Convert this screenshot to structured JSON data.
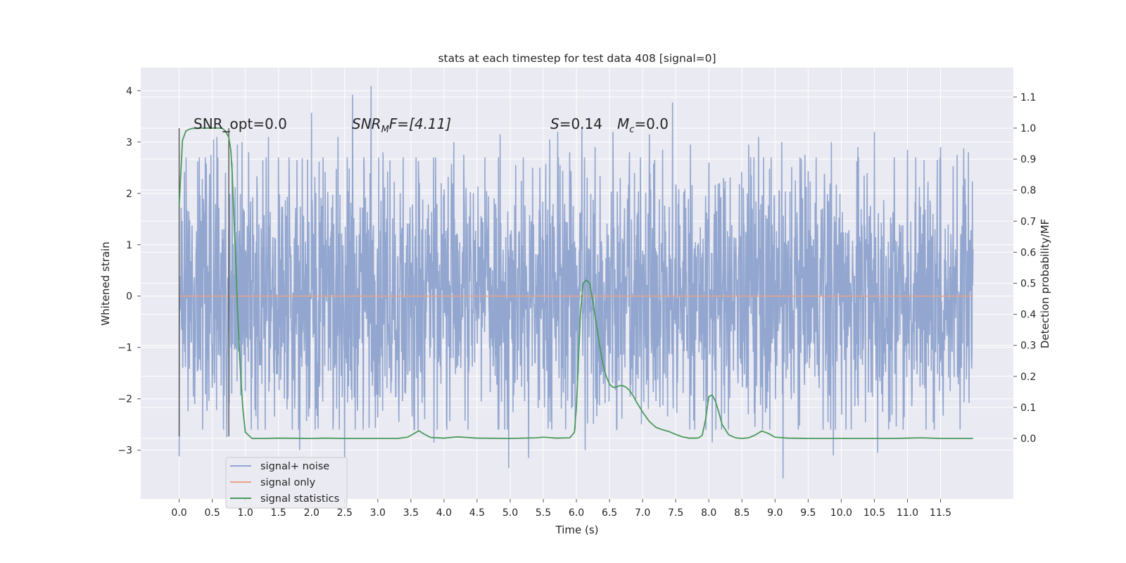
{
  "chart_data": {
    "type": "line",
    "title": "stats at each timestep for test data 408 [signal=0]",
    "xlabel": "Time (s)",
    "ylabel": "Whitened strain",
    "ylabel_right": "Detection probability/MF",
    "xlim": [
      -0.58,
      12.6
    ],
    "ylim": [
      -3.95,
      4.45
    ],
    "ylim_right": [
      -0.195,
      1.195
    ],
    "x_ticks": [
      0.0,
      0.5,
      1.0,
      1.5,
      2.0,
      2.5,
      3.0,
      3.5,
      4.0,
      4.5,
      5.0,
      5.5,
      6.0,
      6.5,
      7.0,
      7.5,
      8.0,
      8.5,
      9.0,
      9.5,
      10.0,
      10.5,
      11.0,
      11.5
    ],
    "x_tick_labels": [
      "0.0",
      "0.5",
      "1.0",
      "1.5",
      "2.0",
      "2.5",
      "3.0",
      "3.5",
      "4.0",
      "4.5",
      "5.0",
      "5.5",
      "6.0",
      "6.5",
      "7.0",
      "7.5",
      "8.0",
      "8.5",
      "9.0",
      "9.5",
      "10.0",
      "10.5",
      "11.0",
      "11.5"
    ],
    "y_ticks": [
      -3,
      -2,
      -1,
      0,
      1,
      2,
      3,
      4
    ],
    "y_tick_labels": [
      "−3",
      "−2",
      "−1",
      "0",
      "1",
      "2",
      "3",
      "4"
    ],
    "y_ticks_right": [
      0.0,
      0.1,
      0.2,
      0.3,
      0.4,
      0.5,
      0.6,
      0.7,
      0.8,
      0.9,
      1.0,
      1.1
    ],
    "y_tick_labels_right": [
      "0.0",
      "0.1",
      "0.2",
      "0.3",
      "0.4",
      "0.5",
      "0.6",
      "0.7",
      "0.8",
      "0.9",
      "1.0",
      "1.1"
    ],
    "grid": true,
    "legend_position": "lower-left",
    "annotations": {
      "snr_opt": "SNR_opt=0.0",
      "snr_mf_main": "SNR",
      "snr_mf_sub": "M",
      "snr_mf_rest": "F=[4.11]",
      "s_symbol": "S",
      "s_value": "=0.14",
      "mc_symbol": "M",
      "mc_sub": "c",
      "mc_value": "=0.0"
    },
    "markers": [
      {
        "x": 0.0,
        "y_range": [
          -2.73,
          3.27
        ]
      },
      {
        "x": 0.75,
        "y_range": [
          -2.73,
          3.27
        ]
      }
    ],
    "series": [
      {
        "name": "signal+ noise",
        "color": "#92a6cf",
        "axis": "left",
        "x_range": [
          0.0,
          11.99
        ],
        "samples": 2400,
        "spread": 1.52,
        "extremes": [
          {
            "x": 0.0,
            "y": -3.12
          },
          {
            "x": 0.08,
            "y": 2.42
          },
          {
            "x": 0.28,
            "y": 2.62
          },
          {
            "x": 0.48,
            "y": 2.75
          },
          {
            "x": 0.52,
            "y": 3.05
          },
          {
            "x": 0.57,
            "y": 3.1
          },
          {
            "x": 0.7,
            "y": 2.4
          },
          {
            "x": 0.72,
            "y": -2.75
          },
          {
            "x": 0.8,
            "y": 2.6
          },
          {
            "x": 0.88,
            "y": 2.95
          },
          {
            "x": 0.95,
            "y": 3.0
          },
          {
            "x": 1.05,
            "y": 2.8
          },
          {
            "x": 1.3,
            "y": -2.6
          },
          {
            "x": 1.35,
            "y": 3.1
          },
          {
            "x": 1.5,
            "y": 2.7
          },
          {
            "x": 1.78,
            "y": 2.65
          },
          {
            "x": 1.82,
            "y": -3.0
          },
          {
            "x": 2.0,
            "y": 3.57
          },
          {
            "x": 2.4,
            "y": 3.1
          },
          {
            "x": 2.5,
            "y": -3.15
          },
          {
            "x": 2.62,
            "y": 3.92
          },
          {
            "x": 2.9,
            "y": 4.09
          },
          {
            "x": 3.08,
            "y": 2.8
          },
          {
            "x": 3.58,
            "y": 2.7
          },
          {
            "x": 3.85,
            "y": -2.85
          },
          {
            "x": 4.15,
            "y": 3.0
          },
          {
            "x": 4.3,
            "y": 2.75
          },
          {
            "x": 4.62,
            "y": 2.7
          },
          {
            "x": 4.85,
            "y": 3.15
          },
          {
            "x": 4.98,
            "y": -3.35
          },
          {
            "x": 5.2,
            "y": 2.7
          },
          {
            "x": 5.28,
            "y": -3.15
          },
          {
            "x": 5.45,
            "y": 2.5
          },
          {
            "x": 5.6,
            "y": 3.05
          },
          {
            "x": 5.72,
            "y": 3.2
          },
          {
            "x": 5.9,
            "y": 2.8
          },
          {
            "x": 6.08,
            "y": 3.3
          },
          {
            "x": 6.13,
            "y": -3.0
          },
          {
            "x": 6.28,
            "y": 2.9
          },
          {
            "x": 6.55,
            "y": 3.2
          },
          {
            "x": 6.8,
            "y": 2.8
          },
          {
            "x": 7.1,
            "y": 3.15
          },
          {
            "x": 7.3,
            "y": 2.85
          },
          {
            "x": 7.45,
            "y": 3.77
          },
          {
            "x": 7.72,
            "y": 2.95
          },
          {
            "x": 8.0,
            "y": 2.6
          },
          {
            "x": 8.05,
            "y": -2.85
          },
          {
            "x": 8.6,
            "y": 2.95
          },
          {
            "x": 8.75,
            "y": 3.1
          },
          {
            "x": 9.12,
            "y": -3.55
          },
          {
            "x": 9.1,
            "y": 3.0
          },
          {
            "x": 9.45,
            "y": 2.75
          },
          {
            "x": 9.85,
            "y": 3.0
          },
          {
            "x": 9.88,
            "y": -3.1
          },
          {
            "x": 10.25,
            "y": 2.9
          },
          {
            "x": 10.5,
            "y": 3.2
          },
          {
            "x": 10.55,
            "y": -3.05
          },
          {
            "x": 10.8,
            "y": 2.7
          },
          {
            "x": 11.0,
            "y": 2.85
          },
          {
            "x": 11.25,
            "y": 2.65
          },
          {
            "x": 11.5,
            "y": 2.9
          },
          {
            "x": 11.75,
            "y": 2.75
          },
          {
            "x": 11.85,
            "y": 2.88
          },
          {
            "x": 11.92,
            "y": 2.8
          }
        ]
      },
      {
        "name": "signal only",
        "color": "#e8a38a",
        "axis": "left",
        "x": [
          0.0,
          11.99
        ],
        "y": [
          0.0,
          0.0
        ]
      },
      {
        "name": "signal statistics",
        "color": "#4a9a5c",
        "axis": "right",
        "x": [
          0.0,
          0.05,
          0.1,
          0.15,
          0.2,
          0.3,
          0.4,
          0.5,
          0.6,
          0.65,
          0.7,
          0.75,
          0.78,
          0.8,
          0.82,
          0.85,
          0.88,
          0.92,
          0.96,
          1.0,
          1.1,
          1.3,
          1.5,
          2.0,
          2.2,
          2.5,
          3.0,
          3.3,
          3.45,
          3.55,
          3.62,
          3.7,
          3.8,
          4.0,
          4.2,
          4.5,
          5.0,
          5.4,
          5.5,
          5.7,
          5.9,
          5.97,
          6.0,
          6.03,
          6.06,
          6.1,
          6.15,
          6.2,
          6.25,
          6.3,
          6.35,
          6.4,
          6.45,
          6.5,
          6.55,
          6.6,
          6.65,
          6.7,
          6.75,
          6.8,
          6.85,
          6.9,
          7.0,
          7.1,
          7.2,
          7.3,
          7.4,
          7.5,
          7.6,
          7.7,
          7.8,
          7.85,
          7.9,
          7.95,
          8.0,
          8.05,
          8.1,
          8.15,
          8.2,
          8.3,
          8.4,
          8.5,
          8.6,
          8.7,
          8.8,
          8.9,
          9.0,
          9.2,
          9.5,
          10.0,
          10.5,
          10.8,
          11.0,
          11.2,
          11.5,
          11.99
        ],
        "y": [
          0.75,
          0.96,
          0.99,
          0.996,
          0.999,
          1.0,
          1.0,
          1.0,
          1.0,
          1.0,
          0.99,
          0.97,
          0.93,
          0.86,
          0.75,
          0.6,
          0.42,
          0.24,
          0.1,
          0.02,
          0.0,
          0.0,
          0.001,
          0.0,
          0.001,
          0.0,
          0.0,
          0.0,
          0.004,
          0.016,
          0.025,
          0.014,
          0.003,
          0.001,
          0.005,
          0.001,
          0.0,
          0.002,
          0.004,
          0.001,
          0.002,
          0.02,
          0.1,
          0.25,
          0.4,
          0.5,
          0.51,
          0.5,
          0.44,
          0.37,
          0.3,
          0.24,
          0.2,
          0.175,
          0.165,
          0.165,
          0.17,
          0.17,
          0.165,
          0.155,
          0.14,
          0.12,
          0.085,
          0.055,
          0.036,
          0.028,
          0.022,
          0.013,
          0.005,
          0.001,
          0.001,
          0.002,
          0.01,
          0.06,
          0.135,
          0.14,
          0.12,
          0.085,
          0.045,
          0.012,
          0.002,
          0.0,
          0.002,
          0.011,
          0.024,
          0.016,
          0.004,
          0.001,
          0.0,
          0.0,
          0.0,
          0.0,
          0.001,
          0.002,
          0.0,
          0.0
        ]
      }
    ]
  }
}
